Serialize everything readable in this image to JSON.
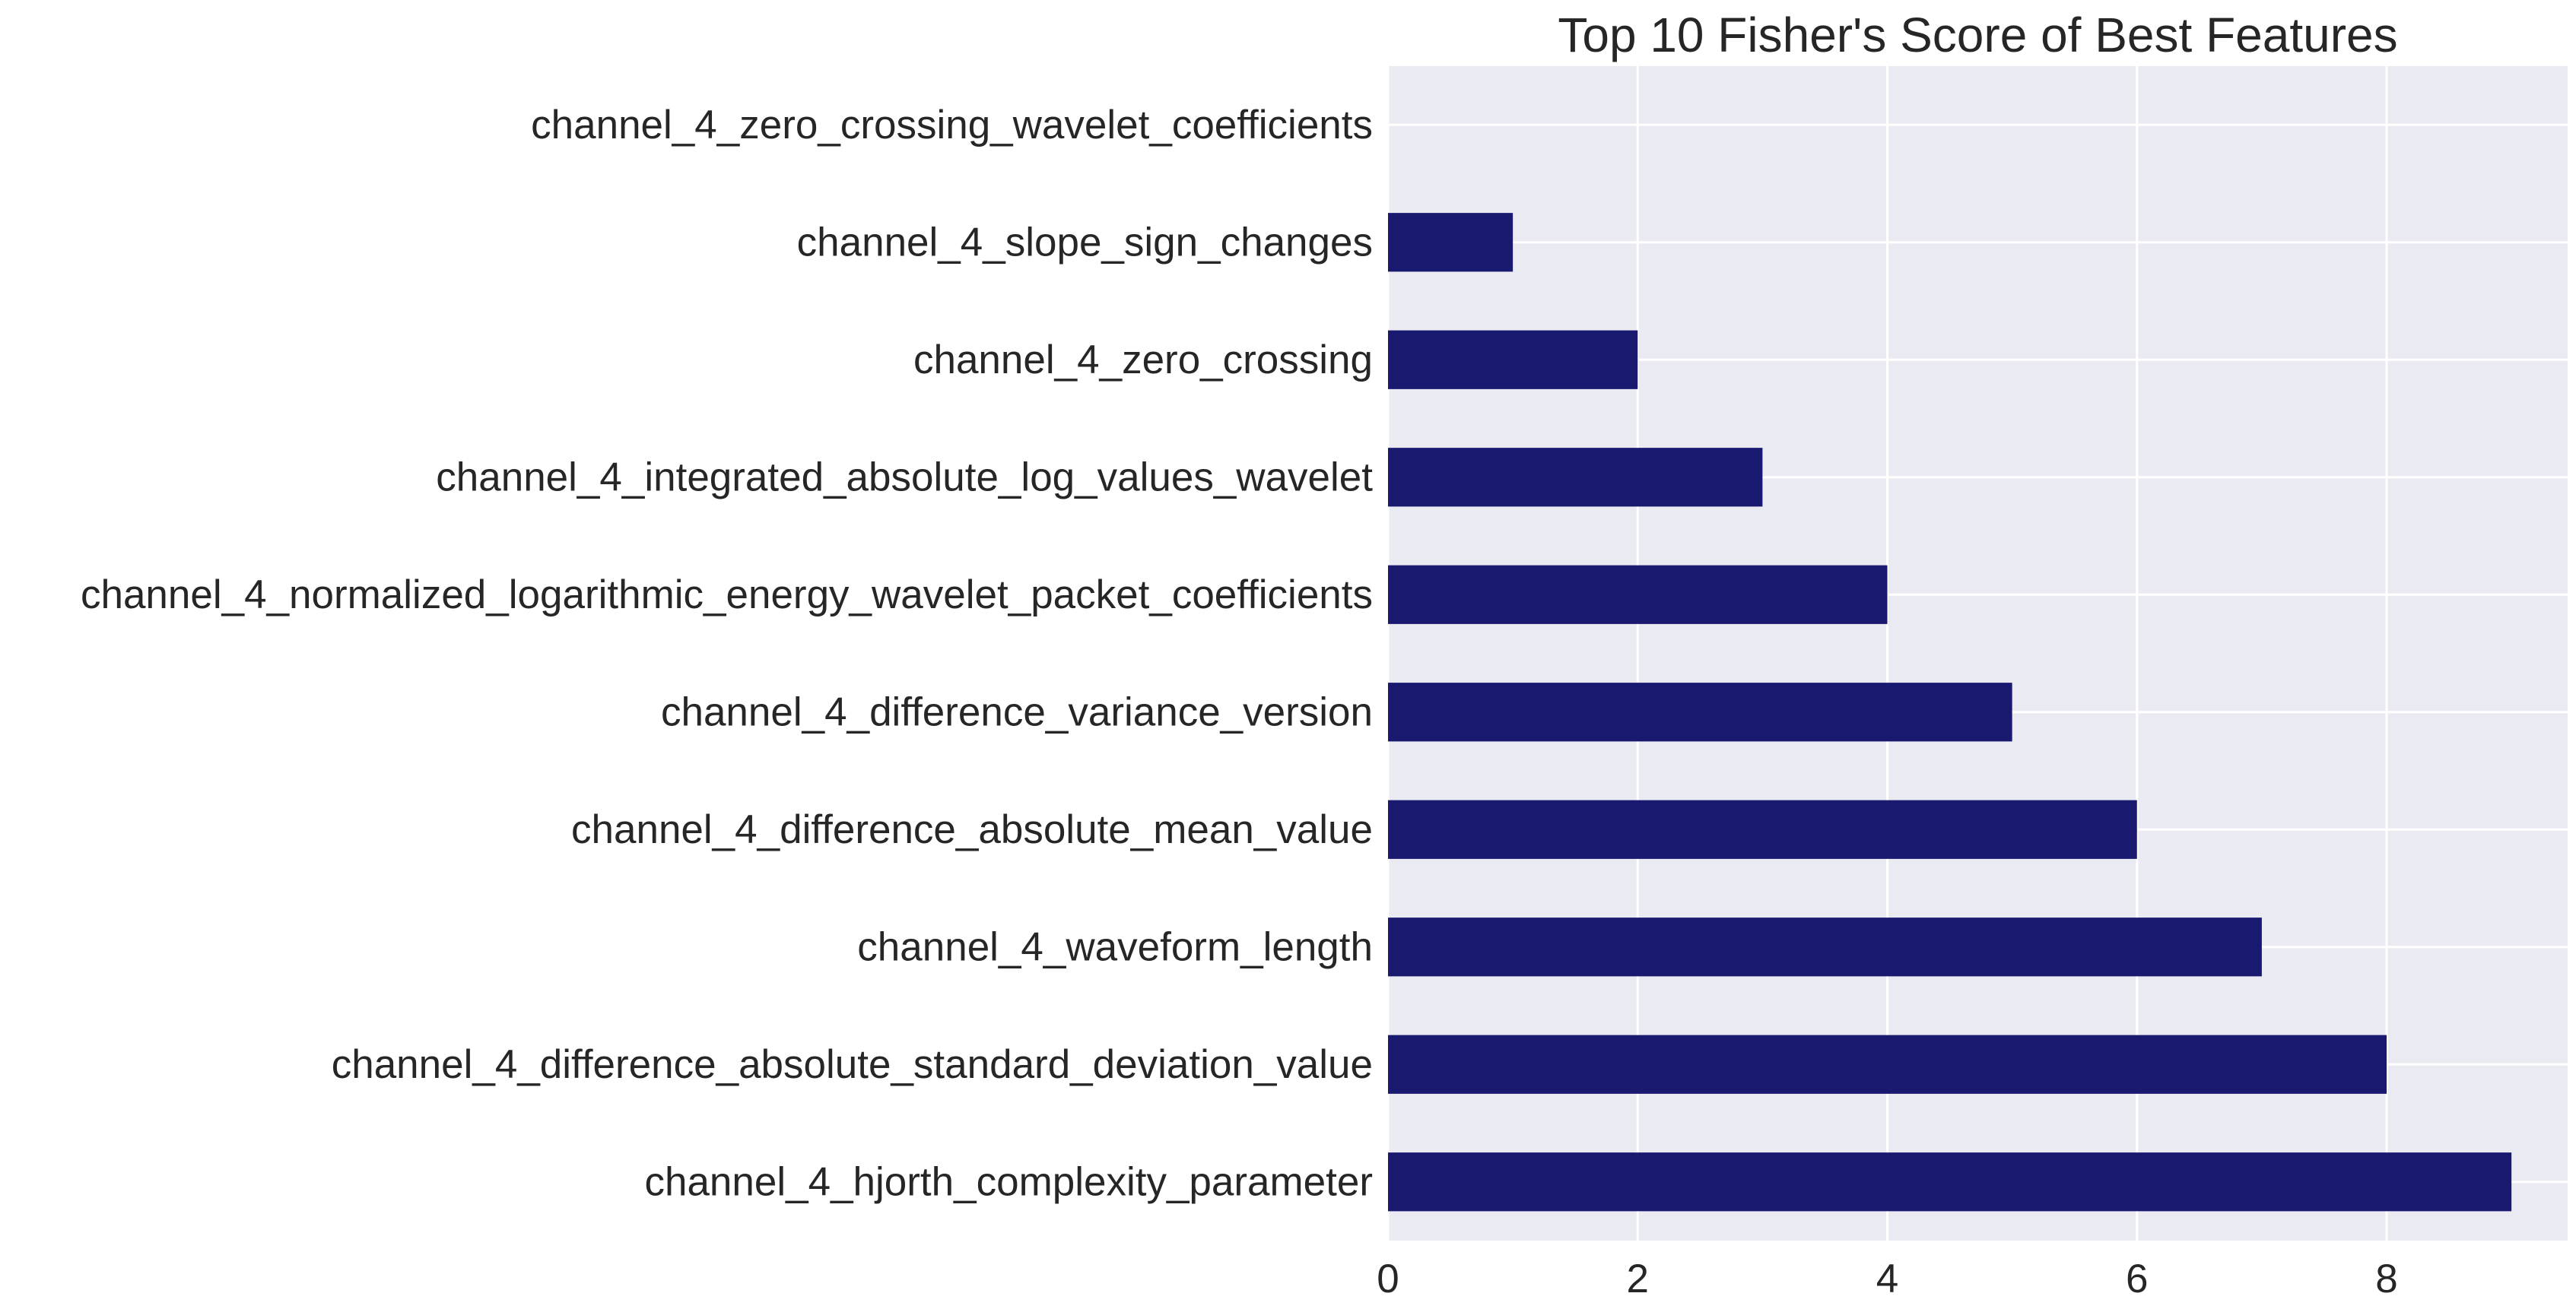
{
  "chart_data": {
    "type": "bar",
    "orientation": "horizontal",
    "title": "Top 10 Fisher's Score of Best Features",
    "xlabel": "",
    "ylabel": "",
    "categories": [
      "channel_4_zero_crossing_wavelet_coefficients",
      "channel_4_slope_sign_changes",
      "channel_4_zero_crossing",
      "channel_4_integrated_absolute_log_values_wavelet",
      "channel_4_normalized_logarithmic_energy_wavelet_packet_coefficients",
      "channel_4_difference_variance_version",
      "channel_4_difference_absolute_mean_value",
      "channel_4_waveform_length",
      "channel_4_difference_absolute_standard_deviation_value",
      "channel_4_hjorth_complexity_parameter"
    ],
    "values": [
      0,
      1,
      2,
      3,
      4,
      5,
      6,
      7,
      8,
      9
    ],
    "xlim": [
      0,
      9.45
    ],
    "xticks": [
      0,
      2,
      4,
      6,
      8
    ],
    "grid": true,
    "legend": "none",
    "colors": {
      "bar": "#191970",
      "plot_background": "#EAEAF2",
      "grid": "#FFFFFF",
      "text": "#262626"
    }
  }
}
